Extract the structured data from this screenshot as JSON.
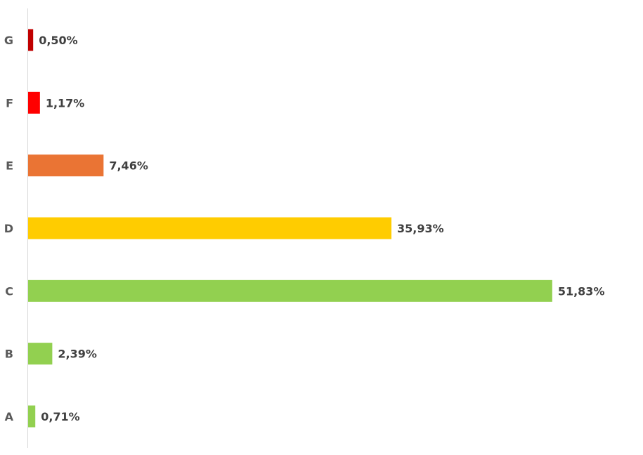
{
  "chart_data": {
    "type": "bar",
    "orientation": "horizontal",
    "title": "",
    "xlabel": "",
    "ylabel": "",
    "grid": false,
    "legend": "none",
    "categories": [
      "A",
      "B",
      "C",
      "D",
      "E",
      "F",
      "G"
    ],
    "values": [
      0.71,
      2.39,
      51.83,
      35.93,
      7.46,
      1.17,
      0.5
    ],
    "value_labels": [
      "0,71%",
      "2,39%",
      "51,83%",
      "35,93%",
      "7,46%",
      "1,17%",
      "0,50%"
    ],
    "colors": [
      "#92D050",
      "#92D050",
      "#92D050",
      "#FFCC00",
      "#EA7434",
      "#FF0000",
      "#C00000"
    ],
    "unit": "%"
  }
}
